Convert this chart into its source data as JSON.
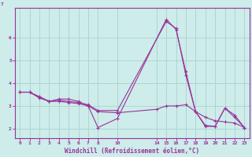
{
  "background_color": "#cdecea",
  "grid_color": "#aed6d3",
  "line_color": "#993399",
  "axis_label_color": "#993399",
  "xlabel": "Windchill (Refroidissement éolien,°C)",
  "xlim": [
    -0.5,
    23.5
  ],
  "ylim": [
    1.6,
    7.3
  ],
  "xticks": [
    0,
    1,
    2,
    3,
    4,
    5,
    6,
    7,
    8,
    10,
    14,
    15,
    16,
    17,
    18,
    19,
    20,
    21,
    22,
    23
  ],
  "yticks": [
    2,
    3,
    4,
    5,
    6
  ],
  "ytop_label": "7",
  "lines": [
    {
      "x": [
        0,
        1,
        2,
        3,
        4,
        5,
        6,
        7,
        8,
        10,
        15,
        16,
        17,
        18,
        19,
        20,
        21,
        22,
        23
      ],
      "y": [
        3.6,
        3.6,
        3.4,
        3.2,
        3.3,
        3.3,
        3.2,
        3.0,
        2.05,
        2.45,
        6.8,
        6.35,
        4.5,
        2.75,
        2.15,
        2.1,
        2.9,
        2.6,
        2.05
      ]
    },
    {
      "x": [
        0,
        1,
        2,
        3,
        4,
        5,
        6,
        7,
        8,
        10,
        15,
        16,
        17,
        18,
        19,
        20,
        21,
        22,
        23
      ],
      "y": [
        3.6,
        3.6,
        3.4,
        3.2,
        3.25,
        3.2,
        3.15,
        3.05,
        2.8,
        2.8,
        6.7,
        6.4,
        4.35,
        2.75,
        2.1,
        2.1,
        2.9,
        2.5,
        2.05
      ]
    },
    {
      "x": [
        0,
        1,
        2,
        3,
        4,
        5,
        6,
        7,
        8,
        10,
        14,
        15,
        16,
        17,
        18,
        19,
        20,
        21,
        22,
        23
      ],
      "y": [
        3.6,
        3.6,
        3.35,
        3.2,
        3.2,
        3.15,
        3.1,
        3.0,
        2.75,
        2.7,
        2.85,
        3.0,
        3.0,
        3.05,
        2.75,
        2.5,
        2.35,
        2.3,
        2.25,
        2.05
      ]
    }
  ]
}
